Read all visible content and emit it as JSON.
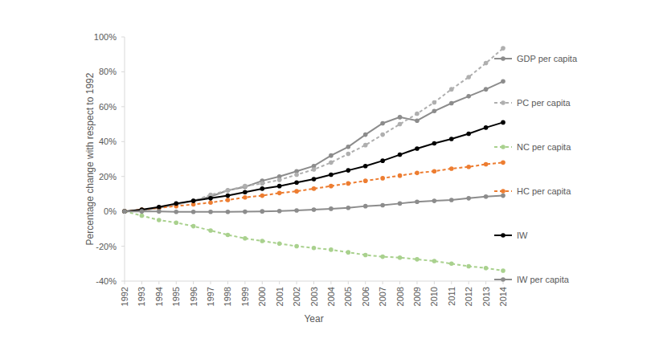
{
  "chart_data": {
    "type": "line",
    "x_label": "Year",
    "y_label": "Percentage change with respect to 1992",
    "categories": [
      "1992",
      "1993",
      "1994",
      "1995",
      "1996",
      "1997",
      "1998",
      "1999",
      "2000",
      "2001",
      "2002",
      "2003",
      "2004",
      "2005",
      "2006",
      "2007",
      "2008",
      "2009",
      "2010",
      "2011",
      "2012",
      "2013",
      "2014"
    ],
    "ylim": [
      -40,
      100
    ],
    "yticks": [
      {
        "value": -40,
        "label": "-40%"
      },
      {
        "value": -20,
        "label": "-20%"
      },
      {
        "value": 0,
        "label": "0%"
      },
      {
        "value": 20,
        "label": "20%"
      },
      {
        "value": 40,
        "label": "40%"
      },
      {
        "value": 60,
        "label": "60%"
      },
      {
        "value": 80,
        "label": "80%"
      },
      {
        "value": 100,
        "label": "100%"
      }
    ],
    "grid": false,
    "legend": "right",
    "series": [
      {
        "name": "GDP per capita",
        "color": "#8c8c8c",
        "marker": "circle",
        "line_style": "solid",
        "values": [
          0,
          0.5,
          2,
          4,
          6,
          8.5,
          12,
          14,
          17.5,
          20,
          23,
          26,
          32,
          37,
          44,
          50.5,
          54,
          52,
          57.5,
          62,
          66,
          70,
          74.5
        ]
      },
      {
        "name": "PC per capita",
        "color": "#afafaf",
        "marker": "circle",
        "line_style": "dashed",
        "values": [
          0,
          0.5,
          2,
          4,
          6,
          9.5,
          12,
          14.5,
          16,
          18,
          21,
          24,
          28,
          33,
          38,
          44,
          50,
          56,
          62.5,
          70,
          77,
          85,
          93.5
        ]
      },
      {
        "name": "NC per capita",
        "color": "#a9d18e",
        "marker": "circle",
        "line_style": "dashed",
        "values": [
          0,
          -2.5,
          -5,
          -6.5,
          -8.5,
          -11,
          -13.5,
          -15.5,
          -17,
          -18.5,
          -20,
          -21,
          -22,
          -23.5,
          -25,
          -26,
          -26.5,
          -27.5,
          -28.5,
          -30,
          -31.5,
          -32.5,
          -34
        ]
      },
      {
        "name": "HC per capita",
        "color": "#ed7d31",
        "marker": "circle",
        "line_style": "dashed",
        "values": [
          0,
          1,
          2,
          3,
          4,
          5,
          6.5,
          8,
          9,
          10.5,
          11.5,
          13,
          14.5,
          16,
          17.5,
          19,
          20.5,
          22,
          23,
          24.5,
          25.5,
          27,
          28
        ]
      },
      {
        "name": "IW",
        "color": "#000000",
        "marker": "circle",
        "line_style": "solid",
        "values": [
          0,
          1,
          2.5,
          4.5,
          6,
          7.5,
          9,
          11,
          13,
          14.5,
          16.5,
          18.5,
          21,
          23.5,
          26,
          29,
          32.5,
          36,
          39,
          41.5,
          44.5,
          48,
          51
        ]
      },
      {
        "name": "IW per capita",
        "color": "#8c8c8c",
        "marker": "circle",
        "line_style": "solid",
        "values": [
          0,
          0,
          0,
          -0.3,
          -0.3,
          -0.3,
          -0.3,
          -0.2,
          0,
          0.2,
          0.5,
          1,
          1.5,
          2,
          3,
          3.5,
          4.5,
          5.5,
          6,
          6.5,
          7.5,
          8.5,
          9
        ]
      }
    ]
  }
}
